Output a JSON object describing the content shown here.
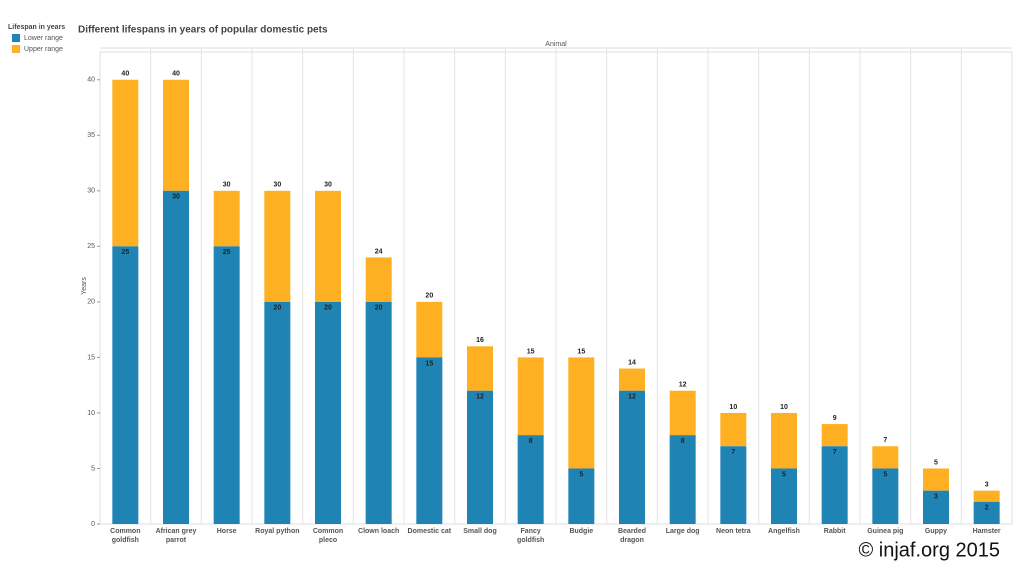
{
  "chart_data": {
    "type": "range_bar",
    "title": "Different lifespans in years of popular domestic pets",
    "legend_title": "Lifespan in years",
    "x_header": "Animal",
    "y_label": "Years",
    "watermark": "© injaf.org 2015",
    "categories": [
      "Common goldfish",
      "African grey parrot",
      "Horse",
      "Royal python",
      "Common pleco",
      "Clown loach",
      "Domestic cat",
      "Small dog",
      "Fancy goldfish",
      "Budgie",
      "Bearded dragon",
      "Large dog",
      "Neon tetra",
      "Angelfish",
      "Rabbit",
      "Guinea pig",
      "Guppy",
      "Hamster"
    ],
    "series": [
      {
        "name": "Lower range",
        "color": "#1f83b4",
        "values": [
          25,
          30,
          25,
          20,
          20,
          20,
          15,
          12,
          8,
          5,
          12,
          8,
          7,
          5,
          7,
          5,
          3,
          2
        ]
      },
      {
        "name": "Upper range",
        "color": "#ffb022",
        "values": [
          40,
          40,
          30,
          30,
          30,
          24,
          20,
          16,
          15,
          15,
          14,
          12,
          10,
          10,
          9,
          7,
          5,
          3
        ]
      }
    ],
    "ylim": [
      0,
      42.5
    ],
    "yticks": [
      0,
      5,
      10,
      15,
      20,
      25,
      30,
      35,
      40
    ],
    "grid": true
  }
}
